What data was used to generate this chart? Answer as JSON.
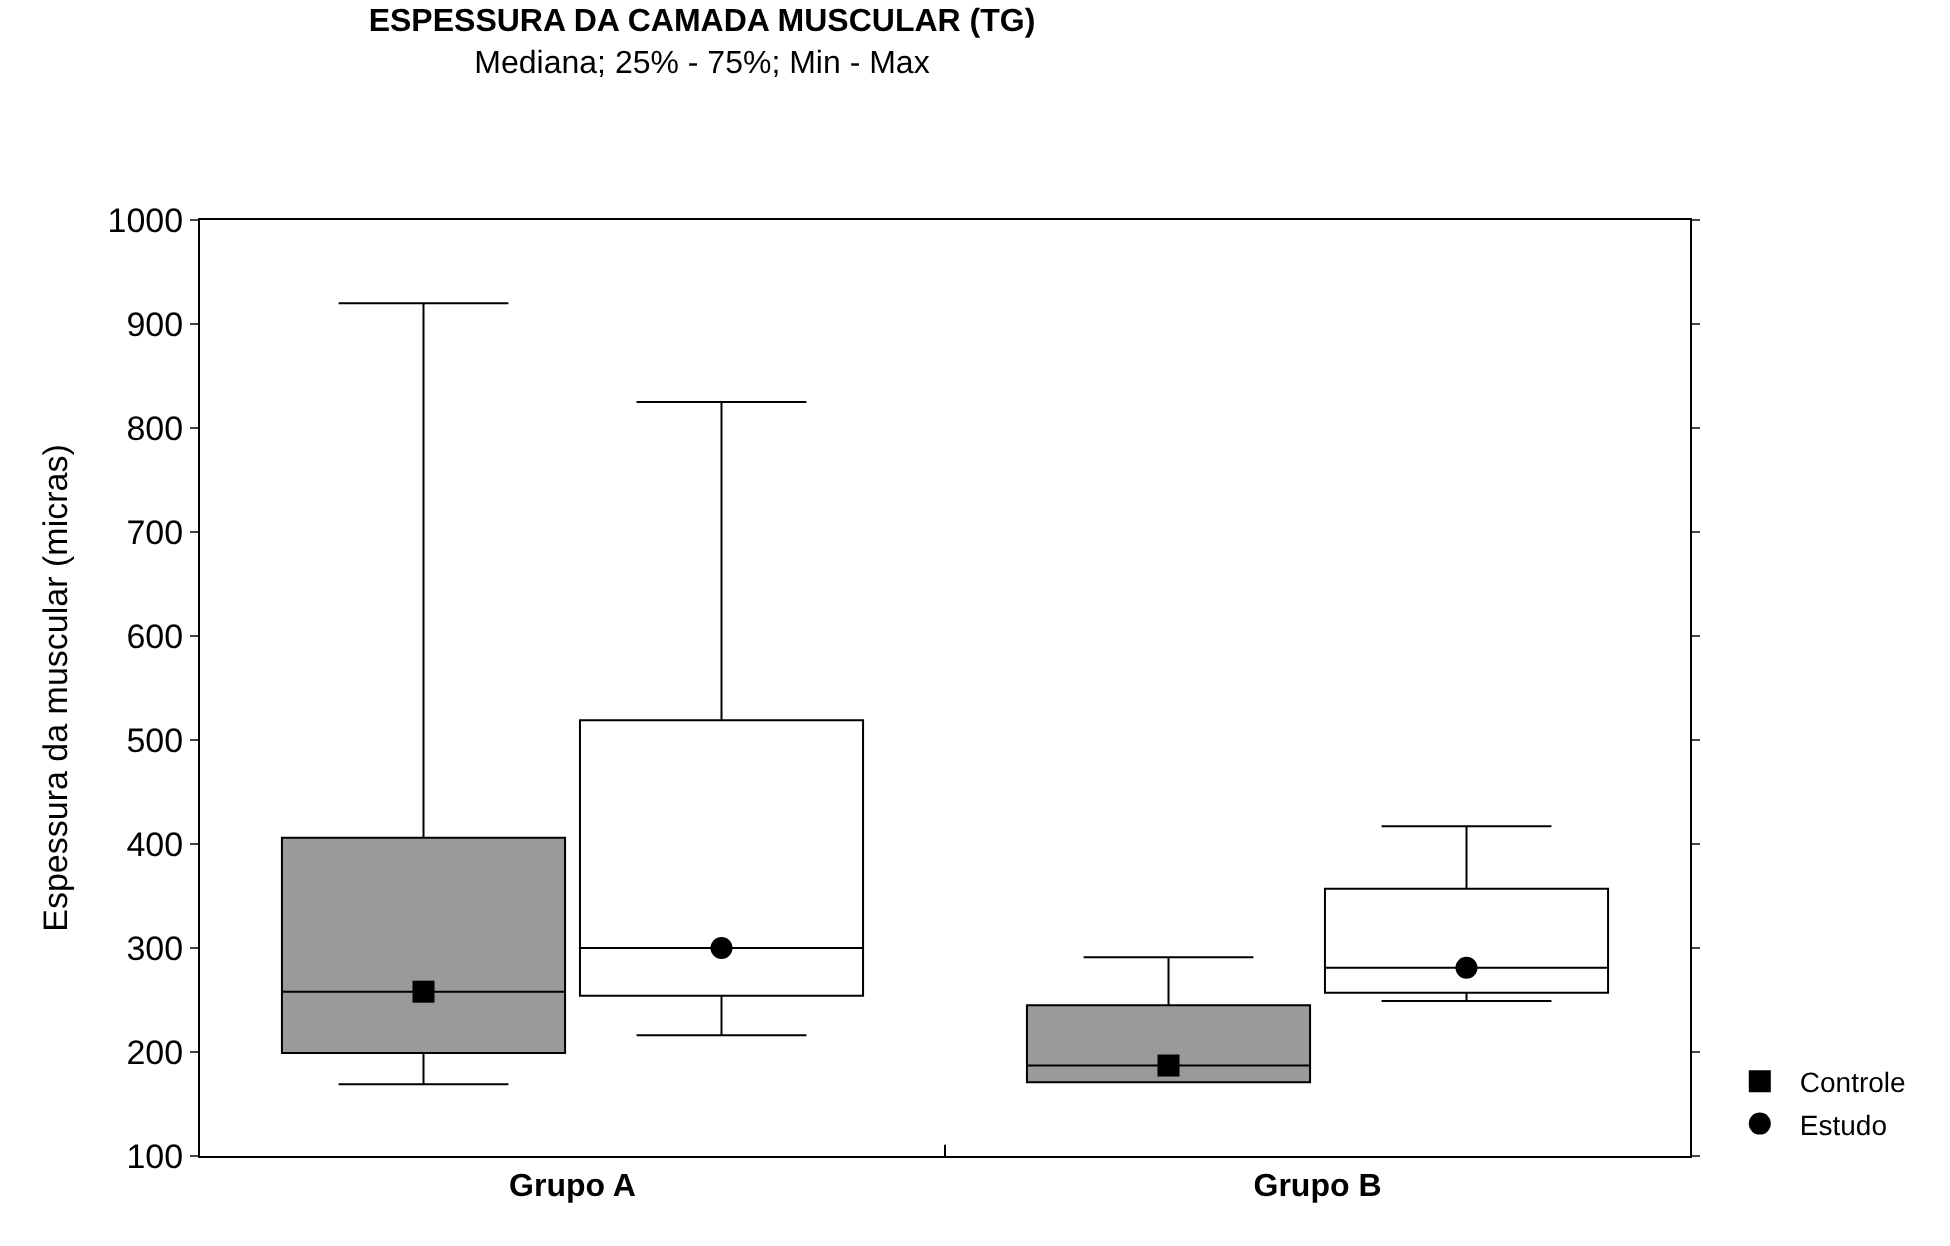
{
  "chart_data": {
    "type": "box",
    "title": "ESPESSURA DA CAMADA MUSCULAR (TG)",
    "subtitle": "Mediana; 25% - 75%; Min - Max",
    "ylabel": "Espessura da muscular (micras)",
    "categories": [
      "Grupo A",
      "Grupo B"
    ],
    "ylim": [
      100,
      1000
    ],
    "yticks": [
      100,
      200,
      300,
      400,
      500,
      600,
      700,
      800,
      900,
      1000
    ],
    "legend": "bottom right",
    "series": [
      {
        "color": "#9a9a9a",
        "boxes": [
          {
            "low": 169,
            "q1": 199,
            "median": 258,
            "q3": 406,
            "high": 920
          },
          {
            "low": 171,
            "q1": 171,
            "median": 187,
            "q3": 245,
            "high": 291
          }
        ]
      },
      {
        "color": "#ffffff",
        "boxes": [
          {
            "low": 216,
            "q1": 254,
            "median": 300,
            "q3": 519,
            "high": 825
          },
          {
            "low": 249,
            "q1": 257,
            "median": 281,
            "q3": 357,
            "high": 417
          }
        ]
      },
      {
        "name": "Controle",
        "type": "scatter",
        "color": "#000000",
        "marker": "square",
        "x": [
          "Grupo A",
          "Grupo B"
        ],
        "values": [
          258,
          187
        ]
      },
      {
        "name": "Estudo",
        "type": "scatter",
        "color": "#000000",
        "marker": "circle",
        "x": [
          "Grupo A",
          "Grupo B"
        ],
        "values": [
          300,
          281
        ]
      }
    ]
  }
}
